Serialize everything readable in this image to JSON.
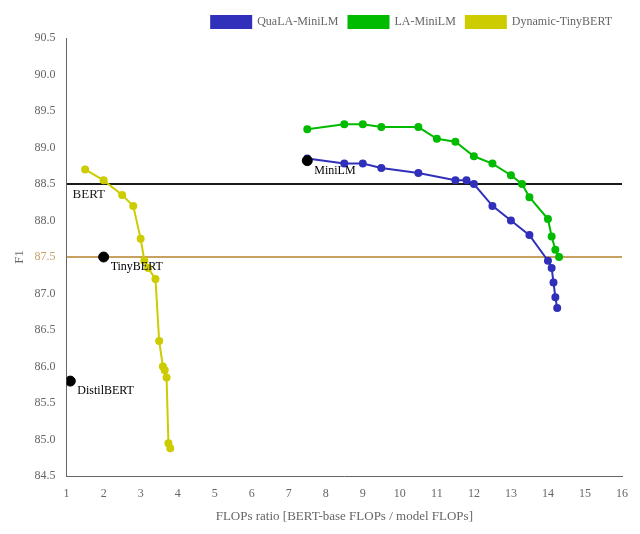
{
  "chart_data": {
    "type": "line",
    "xlabel": "FLOPs ratio [BERT-base FLOPs / model FLOPs]",
    "ylabel": "F1",
    "xlim": [
      1,
      16
    ],
    "ylim": [
      84.5,
      90.5
    ],
    "xticks": [
      1,
      2,
      3,
      4,
      5,
      6,
      7,
      8,
      9,
      10,
      11,
      12,
      13,
      14,
      15,
      16
    ],
    "yticks": [
      84.5,
      {
        "value": 85.0,
        "label": "85.0"
      },
      85.5,
      {
        "value": 86.0,
        "label": "86.0"
      },
      86.5,
      {
        "value": 87.0,
        "label": "87.0"
      },
      87.5,
      {
        "value": 88.0,
        "label": "88.0"
      },
      88.5,
      {
        "value": 89.0,
        "label": "89.0"
      },
      89.5,
      {
        "value": 90.0,
        "label": "90.0"
      },
      90.5
    ],
    "grid": false,
    "legend": "upper right",
    "series": [
      {
        "name": "QuaLA-MiniLM",
        "color": "#3030bb",
        "marker": "circle",
        "x": [
          7.5,
          8.5,
          9.0,
          9.5,
          10.5,
          11.5,
          11.8,
          12.0,
          12.5,
          13.0,
          13.5,
          14.0,
          14.1,
          14.15,
          14.2,
          14.25
        ],
        "values": [
          88.85,
          88.78,
          88.78,
          88.72,
          88.65,
          88.55,
          88.55,
          88.5,
          88.2,
          88.0,
          87.8,
          87.45,
          87.35,
          87.15,
          86.95,
          86.8
        ]
      },
      {
        "name": "LA-MiniLM",
        "color": "#00bb00",
        "marker": "circle",
        "x": [
          7.5,
          8.5,
          9.0,
          9.5,
          10.5,
          11.0,
          11.5,
          12.0,
          12.5,
          13.0,
          13.3,
          13.5,
          14.0,
          14.1,
          14.2,
          14.3
        ],
        "values": [
          89.25,
          89.32,
          89.32,
          89.28,
          89.28,
          89.12,
          89.08,
          88.88,
          88.78,
          88.62,
          88.5,
          88.32,
          88.02,
          87.78,
          87.6,
          87.5
        ]
      },
      {
        "name": "Dynamic-TinyBERT",
        "color": "#cccc00",
        "marker": "circle",
        "x": [
          1.5,
          2.0,
          2.5,
          2.8,
          3.0,
          3.1,
          3.2,
          3.4,
          3.5,
          3.6,
          3.65,
          3.7,
          3.75,
          3.8
        ],
        "values": [
          88.7,
          88.55,
          88.35,
          88.2,
          87.75,
          87.45,
          87.35,
          87.2,
          86.35,
          86.0,
          85.95,
          85.85,
          84.95,
          84.88
        ]
      }
    ],
    "reference_lines": [
      {
        "name": "BERT",
        "y": 88.5,
        "color": "#1a1a1a"
      },
      {
        "y": 87.5,
        "color": "#c8a060"
      }
    ],
    "annotations": [
      {
        "text": "MiniLM",
        "x": 7.5,
        "y": 88.82,
        "color": "#000000",
        "marker": "circle"
      },
      {
        "text": "TinyBERT",
        "x": 2.0,
        "y": 87.5,
        "color": "#000000",
        "marker": "circle"
      },
      {
        "text": "DistilBERT",
        "x": 1.1,
        "y": 85.8,
        "color": "#000000",
        "marker": "circle"
      }
    ]
  }
}
